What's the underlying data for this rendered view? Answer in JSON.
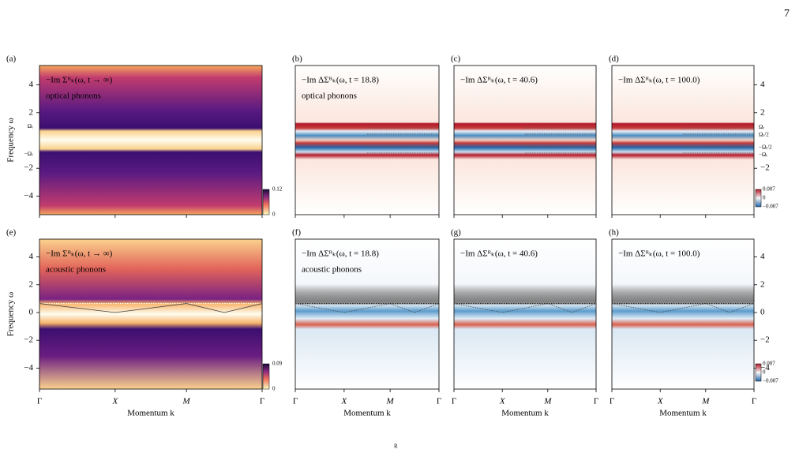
{
  "page_number": "7",
  "y_label": "Frequency ω",
  "x_label": "Momentum k",
  "x_ticks": [
    "Γ",
    "X",
    "M",
    "Γ"
  ],
  "rows": [
    {
      "y_ticks_left": [
        "4",
        "2",
        "−2",
        "−4"
      ],
      "omega_labels_left": [
        "Ωₜ",
        "−Ωₜ"
      ],
      "y_ticks_right": [
        "4",
        "2",
        "−2"
      ],
      "omega_labels_right": [
        "Ωₜ",
        "Ωₜ/2",
        "−Ωₜ/2",
        "−Ωₜ"
      ],
      "colorbar_left": [
        "0.12",
        "0"
      ],
      "colorbar_right": [
        "0.007",
        "0",
        "−0.007"
      ],
      "panels": [
        {
          "label": "(a)",
          "annotation": "−Im Σᴿₖ(ω, t → ∞)",
          "note": "optical phonons"
        },
        {
          "label": "(b)",
          "annotation": "−Im ΔΣᴿₖ(ω, t = 18.8)",
          "note": "optical phonons"
        },
        {
          "label": "(c)",
          "annotation": "−Im ΔΣᴿₖ(ω, t = 40.6)"
        },
        {
          "label": "(d)",
          "annotation": "−Im ΔΣᴿₖ(ω, t = 100.0)"
        }
      ]
    },
    {
      "y_ticks_left": [
        "4",
        "2",
        "0",
        "−2",
        "−4"
      ],
      "y_ticks_right": [
        "4",
        "2",
        "0",
        "−2",
        "−4"
      ],
      "colorbar_left": [
        "0.09",
        "0"
      ],
      "colorbar_right": [
        "0.007",
        "0",
        "−0.007"
      ],
      "panels": [
        {
          "label": "(e)",
          "annotation": "−Im Σᴿₖ(ω, t → ∞)",
          "note": "acoustic phonons"
        },
        {
          "label": "(f)",
          "annotation": "−Im ΔΣᴿₖ(ω, t = 18.8)",
          "note": "acoustic phonons"
        },
        {
          "label": "(g)",
          "annotation": "−Im ΔΣᴿₖ(ω, t = 40.6)"
        },
        {
          "label": "(h)",
          "annotation": "−Im ΔΣᴿₖ(ω, t = 100.0)"
        }
      ]
    }
  ],
  "caption_fragment": "R"
}
